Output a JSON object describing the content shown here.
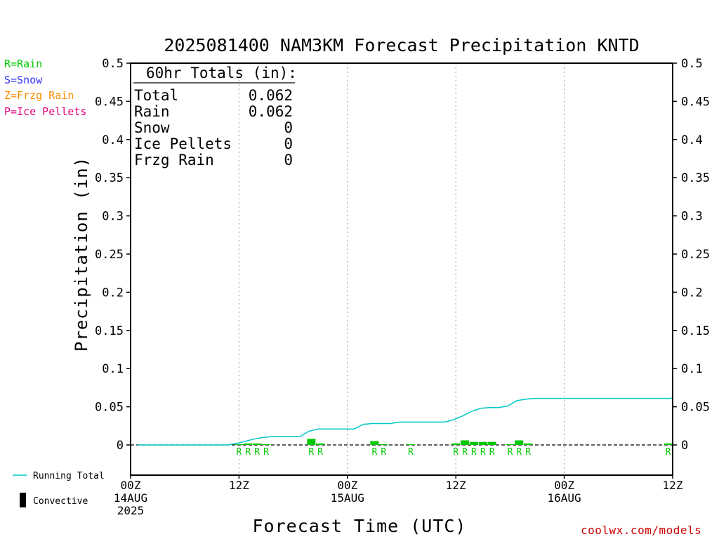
{
  "chart_data": {
    "type": "bar",
    "title": "2025081400 NAM3KM Forecast Precipitation KNTD",
    "xlabel": "Forecast Time (UTC)",
    "ylabel": "Precipitation (in)",
    "ylim": [
      0,
      0.5
    ],
    "y_ticks": [
      0,
      0.05,
      0.1,
      0.15,
      0.2,
      0.25,
      0.3,
      0.35,
      0.4,
      0.45,
      0.5
    ],
    "y_tick_labels": [
      "0",
      "0.05",
      "0.1",
      "0.15",
      "0.2",
      "0.25",
      "0.3",
      "0.35",
      "0.4",
      "0.45",
      "0.5"
    ],
    "x_unit": "forecast hour",
    "xlim": [
      0,
      60
    ],
    "grid": "vertical dotted lines at 12Z and 00Z",
    "x_ticks": [
      {
        "hour": 0,
        "lines": [
          "00Z",
          "14AUG",
          "2025"
        ]
      },
      {
        "hour": 12,
        "lines": [
          "12Z"
        ]
      },
      {
        "hour": 24,
        "lines": [
          "00Z",
          "15AUG"
        ]
      },
      {
        "hour": 36,
        "lines": [
          "12Z"
        ]
      },
      {
        "hour": 48,
        "lines": [
          "00Z",
          "16AUG"
        ]
      },
      {
        "hour": 60,
        "lines": [
          "12Z"
        ]
      }
    ],
    "series": [
      {
        "name": "Running Total",
        "type": "line",
        "color": "#00c8c8",
        "points": [
          [
            0.75,
            0
          ],
          [
            10.75,
            0
          ],
          [
            11.75,
            0.002
          ],
          [
            12.75,
            0.005
          ],
          [
            13.75,
            0.008
          ],
          [
            14.75,
            0.01
          ],
          [
            15.75,
            0.011
          ],
          [
            16.75,
            0.011
          ],
          [
            17.75,
            0.011
          ],
          [
            18.75,
            0.011
          ],
          [
            19.75,
            0.018
          ],
          [
            20.75,
            0.021
          ],
          [
            21.75,
            0.021
          ],
          [
            22.75,
            0.021
          ],
          [
            23.75,
            0.021
          ],
          [
            24.75,
            0.021
          ],
          [
            25.75,
            0.027
          ],
          [
            26.75,
            0.028
          ],
          [
            27.75,
            0.028
          ],
          [
            28.75,
            0.028
          ],
          [
            29.75,
            0.03
          ],
          [
            30.75,
            0.03
          ],
          [
            31.75,
            0.03
          ],
          [
            32.75,
            0.03
          ],
          [
            33.75,
            0.03
          ],
          [
            34.75,
            0.03
          ],
          [
            35.75,
            0.033
          ],
          [
            36.75,
            0.038
          ],
          [
            37.75,
            0.044
          ],
          [
            38.75,
            0.048
          ],
          [
            39.75,
            0.049
          ],
          [
            40.75,
            0.049
          ],
          [
            41.75,
            0.051
          ],
          [
            42.75,
            0.058
          ],
          [
            43.75,
            0.06
          ],
          [
            44.75,
            0.061
          ],
          [
            59.75,
            0.061
          ],
          [
            60,
            0.062
          ]
        ]
      },
      {
        "name": "Rain",
        "type": "bar",
        "color": "#00c800",
        "bars": [
          [
            12,
            0.001
          ],
          [
            13,
            0.002
          ],
          [
            14,
            0.002
          ],
          [
            15,
            0.001
          ],
          [
            20,
            0.008
          ],
          [
            21,
            0.002
          ],
          [
            27,
            0.005
          ],
          [
            28,
            0.001
          ],
          [
            31,
            0.001
          ],
          [
            36,
            0.002
          ],
          [
            37,
            0.006
          ],
          [
            38,
            0.004
          ],
          [
            39,
            0.004
          ],
          [
            40,
            0.004
          ],
          [
            42,
            0.001
          ],
          [
            43,
            0.006
          ],
          [
            44,
            0.002
          ],
          [
            59.5,
            0.002
          ]
        ]
      }
    ],
    "ptype_marks": {
      "color": "#00c800",
      "hours": [
        12,
        13,
        14,
        15,
        20,
        21,
        27,
        28,
        31,
        36,
        37,
        38,
        39,
        40,
        42,
        43,
        44,
        59.5
      ],
      "letter": "R"
    },
    "totals_box": {
      "heading": "60hr Totals (in):",
      "rows": [
        {
          "label": "Total",
          "value": "0.062"
        },
        {
          "label": "Rain",
          "value": "0.062"
        },
        {
          "label": "Snow",
          "value": "0"
        },
        {
          "label": "Ice Pellets",
          "value": "0"
        },
        {
          "label": "Frzg Rain",
          "value": "0"
        }
      ]
    },
    "ptype_legend": [
      {
        "text": "R=Rain",
        "color": "#00c800"
      },
      {
        "text": "S=Snow",
        "color": "#3333ff"
      },
      {
        "text": "Z=Frzg Rain",
        "color": "#ff8c00"
      },
      {
        "text": "P=Ice Pellets",
        "color": "#e6007e"
      }
    ],
    "bottom_legend": {
      "running_total": "Running Total",
      "convective": "Convective"
    },
    "credit": "coolwx.com/models"
  }
}
